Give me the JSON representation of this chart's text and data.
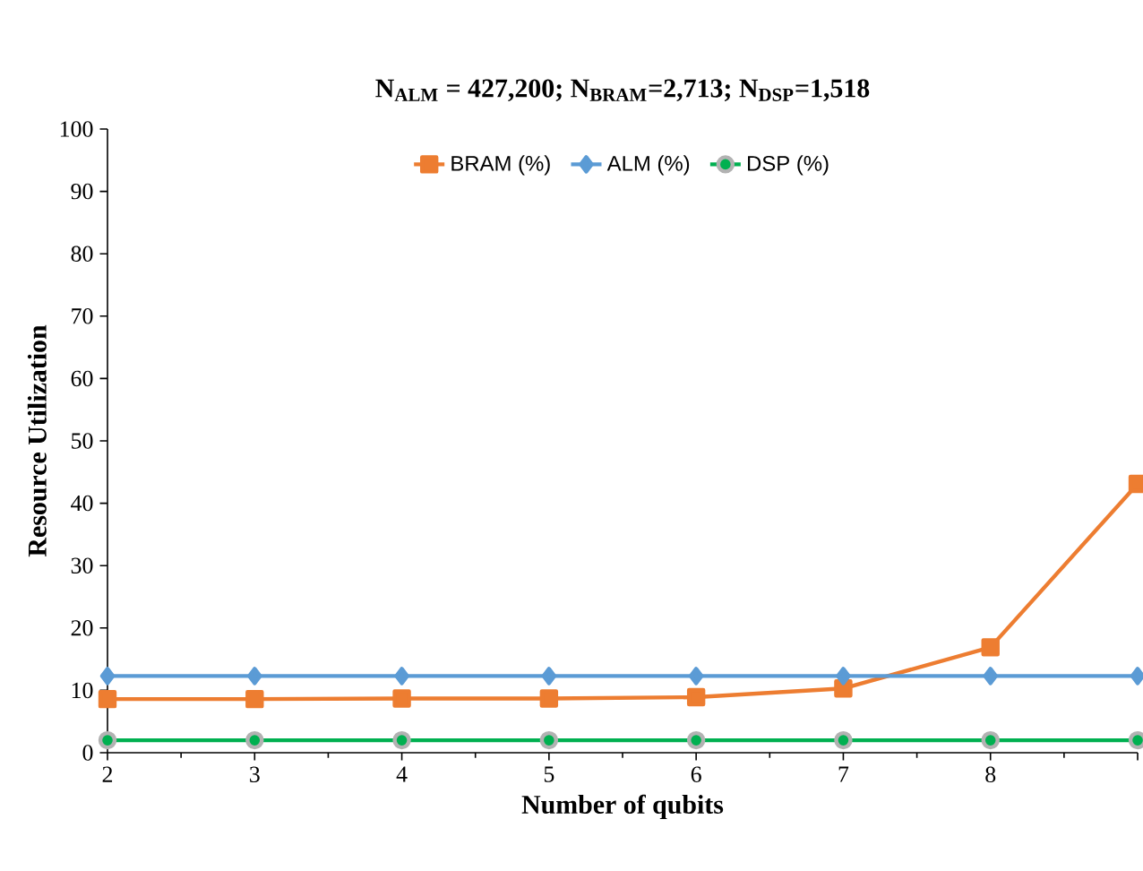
{
  "chart_data": {
    "type": "line",
    "title": "N$_{ALM}$ = 427,200; N$_{BRAM}$=2,713; N$_{DSP}$=1,518",
    "xlabel": "Number of qubits",
    "ylabel": "Resource Utilization",
    "x": [
      2,
      3,
      4,
      5,
      6,
      7,
      8,
      9
    ],
    "xlim": [
      2,
      9
    ],
    "xticks": [
      2,
      3,
      4,
      5,
      6,
      7,
      8,
      {
        "value": 9,
        "label": null
      }
    ],
    "ylim": [
      0,
      100
    ],
    "yticks": [
      0,
      10,
      20,
      30,
      40,
      50,
      60,
      70,
      80,
      90,
      100
    ],
    "grid": false,
    "legend": "top",
    "series": [
      {
        "name": "BRAM (%)",
        "color": "#ed7d31",
        "marker": "square",
        "values": [
          8.6,
          8.6,
          8.7,
          8.7,
          8.9,
          10.3,
          16.9,
          43.1
        ]
      },
      {
        "name": "ALM (%)",
        "color": "#5b9bd5",
        "marker": "diamond",
        "values": [
          12.3,
          12.3,
          12.3,
          12.3,
          12.3,
          12.3,
          12.3,
          12.3
        ]
      },
      {
        "name": "DSP (%)",
        "color": "#00b050",
        "marker": "circle",
        "values": [
          2.0,
          2.0,
          2.0,
          2.0,
          2.0,
          2.0,
          2.0,
          2.0
        ]
      }
    ]
  }
}
